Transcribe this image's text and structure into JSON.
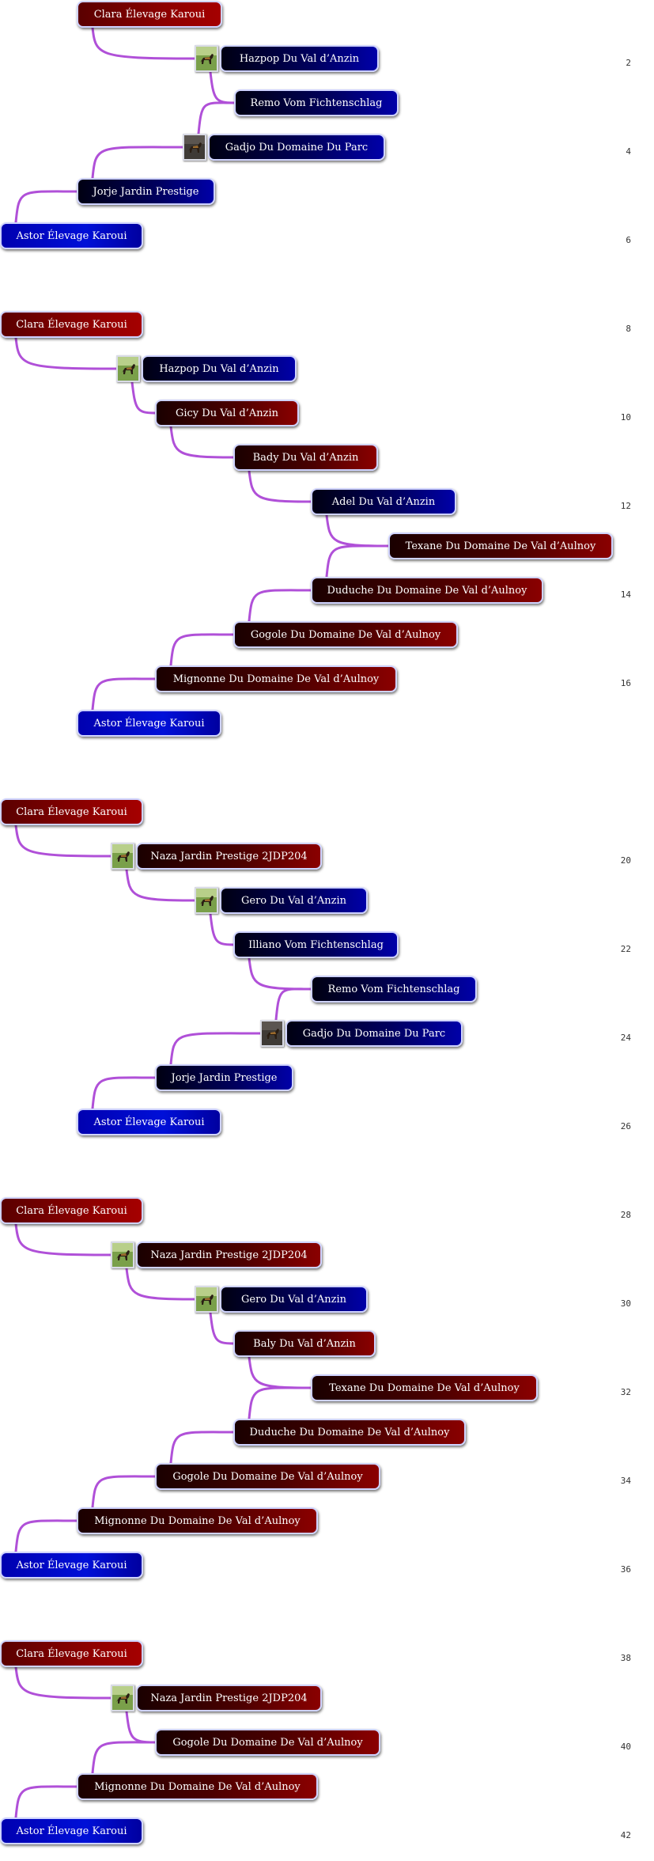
{
  "colors": {
    "connector": "#b050d8",
    "red": "#8c0000",
    "dark": "#4a0000",
    "navy": "#000060",
    "blue": "#0010d8"
  },
  "icons": {
    "dog_green": "dog-photo-icon",
    "dog_dark": "dog-photo-dark-icon"
  },
  "trees": [
    {
      "nodes": [
        {
          "label": "Clara Élevage Karoui",
          "style": "red"
        },
        {
          "label": "Hazpop Du Val d’Anzin",
          "style": "navy",
          "photo": "green"
        },
        {
          "label": "Remo Vom Fichtenschlag",
          "style": "navy"
        },
        {
          "label": "Gadjo Du Domaine Du Parc",
          "style": "navy",
          "photo": "dark"
        },
        {
          "label": "Jorje Jardin Prestige",
          "style": "navy"
        },
        {
          "label": "Astor Élevage Karoui",
          "style": "blue"
        }
      ]
    },
    {
      "nodes": [
        {
          "label": "Clara Élevage Karoui",
          "style": "red"
        },
        {
          "label": "Hazpop Du Val d’Anzin",
          "style": "navy",
          "photo": "green"
        },
        {
          "label": "Gicy Du Val d’Anzin",
          "style": "dark"
        },
        {
          "label": "Bady Du Val d’Anzin",
          "style": "dark"
        },
        {
          "label": "Adel Du Val d’Anzin",
          "style": "navy"
        },
        {
          "label": "Texane Du Domaine De Val d’Aulnoy",
          "style": "dark"
        },
        {
          "label": "Duduche Du Domaine De Val d’Aulnoy",
          "style": "dark"
        },
        {
          "label": "Gogole Du Domaine De Val d’Aulnoy",
          "style": "dark"
        },
        {
          "label": "Mignonne Du Domaine De Val d’Aulnoy",
          "style": "dark"
        },
        {
          "label": "Astor Élevage Karoui",
          "style": "blue"
        }
      ]
    },
    {
      "nodes": [
        {
          "label": "Clara Élevage Karoui",
          "style": "red"
        },
        {
          "label": "Naza Jardin Prestige  2JDP204",
          "style": "dark",
          "photo": "green"
        },
        {
          "label": "Gero Du Val d’Anzin",
          "style": "navy",
          "photo": "green"
        },
        {
          "label": "Illiano Vom Fichtenschlag",
          "style": "navy"
        },
        {
          "label": "Remo Vom Fichtenschlag",
          "style": "navy"
        },
        {
          "label": "Gadjo Du Domaine Du Parc",
          "style": "navy",
          "photo": "dark"
        },
        {
          "label": "Jorje Jardin Prestige",
          "style": "navy"
        },
        {
          "label": "Astor Élevage Karoui",
          "style": "blue"
        }
      ]
    },
    {
      "nodes": [
        {
          "label": "Clara Élevage Karoui",
          "style": "red"
        },
        {
          "label": "Naza Jardin Prestige  2JDP204",
          "style": "dark",
          "photo": "green"
        },
        {
          "label": "Gero Du Val d’Anzin",
          "style": "navy",
          "photo": "green"
        },
        {
          "label": "Baly Du Val d’Anzin",
          "style": "dark"
        },
        {
          "label": "Texane Du Domaine De Val d’Aulnoy",
          "style": "dark"
        },
        {
          "label": "Duduche Du Domaine De Val d’Aulnoy",
          "style": "dark"
        },
        {
          "label": "Gogole Du Domaine De Val d’Aulnoy",
          "style": "dark"
        },
        {
          "label": "Mignonne Du Domaine De Val d’Aulnoy",
          "style": "dark"
        },
        {
          "label": "Astor Élevage Karoui",
          "style": "blue"
        }
      ]
    },
    {
      "nodes": [
        {
          "label": "Clara Élevage Karoui",
          "style": "red"
        },
        {
          "label": "Naza Jardin Prestige  2JDP204",
          "style": "dark",
          "photo": "green"
        },
        {
          "label": "Gogole Du Domaine De Val d’Aulnoy",
          "style": "dark"
        },
        {
          "label": "Mignonne Du Domaine De Val d’Aulnoy",
          "style": "dark"
        },
        {
          "label": "Astor Élevage Karoui",
          "style": "blue"
        }
      ]
    }
  ],
  "page_numbers": [
    "2",
    "4",
    "6",
    "8",
    "10",
    "12",
    "14",
    "16",
    "20",
    "22",
    "24",
    "26",
    "28",
    "30",
    "32",
    "34",
    "36",
    "38",
    "40",
    "42"
  ]
}
